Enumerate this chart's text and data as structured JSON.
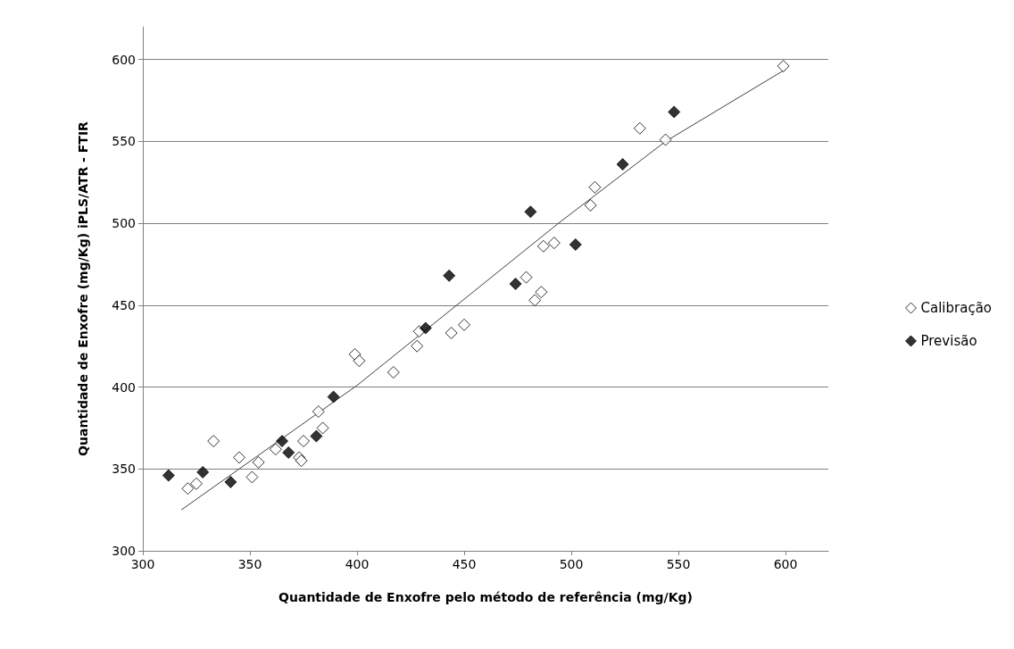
{
  "chart_data": {
    "type": "scatter",
    "xlabel": "Quantidade de Enxofre pelo método de referência (mg/Kg)",
    "ylabel": "Quantidade de Enxofre (mg/Kg) iPLS/ATR - FTIR",
    "xlim": [
      300,
      620
    ],
    "xticks": [
      300,
      350,
      400,
      450,
      500,
      550,
      600
    ],
    "ylim": [
      300,
      620
    ],
    "yticks": [
      300,
      350,
      400,
      450,
      500,
      550,
      600
    ],
    "grid": "y",
    "legend": "right",
    "marker": "diamond",
    "series": [
      {
        "name": "Calibração",
        "color": "#ffffff",
        "x": [
          321,
          325,
          333,
          345,
          351,
          354,
          362,
          373,
          374,
          375,
          382,
          384,
          399,
          401,
          417,
          428,
          429,
          444,
          450,
          479,
          483,
          486,
          487,
          492,
          509,
          511,
          532,
          544,
          599
        ],
        "values": [
          338,
          341,
          367,
          357,
          345,
          354,
          362,
          357,
          355,
          367,
          385,
          375,
          420,
          416,
          409,
          425,
          434,
          433,
          438,
          467,
          453,
          458,
          486,
          488,
          511,
          522,
          558,
          551,
          596
        ]
      },
      {
        "name": "Previsão",
        "color": "#000000",
        "x": [
          312,
          328,
          341,
          365,
          368,
          381,
          389,
          432,
          443,
          474,
          481,
          502,
          524,
          548
        ],
        "values": [
          346,
          348,
          342,
          367,
          360,
          370,
          394,
          436,
          468,
          463,
          507,
          487,
          536,
          568
        ]
      },
      {
        "type": "line",
        "color": "#404040",
        "marker": "none",
        "line_style": "solid",
        "x": [
          318,
          400,
          494,
          544,
          600
        ],
        "values": [
          325,
          401,
          500,
          550,
          594
        ]
      }
    ]
  }
}
